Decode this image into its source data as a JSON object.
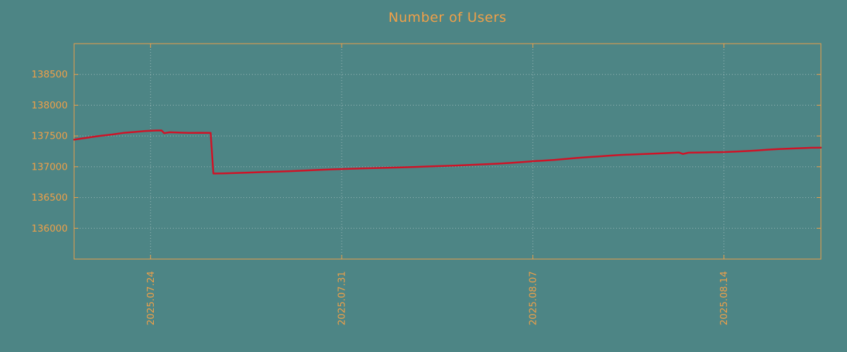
{
  "page": {
    "background_color": "#4d8585",
    "accent_color": "#f0a048"
  },
  "chart_data": {
    "type": "line",
    "title": "Number of Users",
    "title_color": "#f0a048",
    "axis_color": "#f0a048",
    "line_color": "#d01226",
    "grid_color": "#dfe6e6",
    "legend": "none",
    "grid": "dotted",
    "xlabel": "",
    "ylabel": "",
    "xlim": [
      0,
      27.35
    ],
    "ylim": [
      135500,
      139000
    ],
    "x_ticks": [
      {
        "pos": 2.8,
        "label": "2025.07.24"
      },
      {
        "pos": 9.8,
        "label": "2025.07.31"
      },
      {
        "pos": 16.8,
        "label": "2025.08.07"
      },
      {
        "pos": 23.8,
        "label": "2025.08.14"
      }
    ],
    "y_ticks": [
      {
        "value": 136000,
        "label": "136000"
      },
      {
        "value": 136500,
        "label": "136500"
      },
      {
        "value": 137000,
        "label": "137000"
      },
      {
        "value": 137500,
        "label": "137500"
      },
      {
        "value": 138000,
        "label": "138000"
      },
      {
        "value": 138500,
        "label": "138500"
      }
    ],
    "series": [
      {
        "name": "users",
        "color": "#d01226",
        "points": [
          [
            0.0,
            137440
          ],
          [
            0.3,
            137460
          ],
          [
            0.6,
            137480
          ],
          [
            1.0,
            137505
          ],
          [
            1.4,
            137525
          ],
          [
            1.8,
            137550
          ],
          [
            2.2,
            137565
          ],
          [
            2.6,
            137580
          ],
          [
            3.0,
            137588
          ],
          [
            3.2,
            137590
          ],
          [
            3.3,
            137545
          ],
          [
            3.5,
            137560
          ],
          [
            3.8,
            137555
          ],
          [
            4.2,
            137550
          ],
          [
            4.6,
            137552
          ],
          [
            5.0,
            137550
          ],
          [
            5.1,
            136890
          ],
          [
            5.5,
            136893
          ],
          [
            6.0,
            136900
          ],
          [
            6.5,
            136907
          ],
          [
            7.0,
            136915
          ],
          [
            7.5,
            136922
          ],
          [
            8.0,
            136930
          ],
          [
            8.5,
            136940
          ],
          [
            9.0,
            136950
          ],
          [
            9.5,
            136958
          ],
          [
            10.0,
            136965
          ],
          [
            10.5,
            136972
          ],
          [
            11.0,
            136978
          ],
          [
            11.5,
            136984
          ],
          [
            12.0,
            136990
          ],
          [
            12.5,
            136997
          ],
          [
            13.0,
            137005
          ],
          [
            13.5,
            137012
          ],
          [
            14.0,
            137020
          ],
          [
            14.5,
            137030
          ],
          [
            15.0,
            137040
          ],
          [
            15.5,
            137050
          ],
          [
            16.0,
            137062
          ],
          [
            16.4,
            137075
          ],
          [
            16.8,
            137090
          ],
          [
            17.2,
            137100
          ],
          [
            17.6,
            137112
          ],
          [
            18.0,
            137128
          ],
          [
            18.4,
            137142
          ],
          [
            18.8,
            137155
          ],
          [
            19.2,
            137168
          ],
          [
            19.6,
            137180
          ],
          [
            20.0,
            137192
          ],
          [
            20.4,
            137198
          ],
          [
            20.8,
            137205
          ],
          [
            21.2,
            137212
          ],
          [
            21.6,
            137220
          ],
          [
            22.0,
            137228
          ],
          [
            22.15,
            137232
          ],
          [
            22.3,
            137208
          ],
          [
            22.5,
            137228
          ],
          [
            23.0,
            137232
          ],
          [
            23.4,
            137235
          ],
          [
            23.8,
            137238
          ],
          [
            24.2,
            137245
          ],
          [
            24.6,
            137255
          ],
          [
            25.0,
            137265
          ],
          [
            25.4,
            137277
          ],
          [
            25.8,
            137287
          ],
          [
            26.2,
            137295
          ],
          [
            26.6,
            137302
          ],
          [
            27.0,
            137308
          ],
          [
            27.35,
            137310
          ]
        ]
      }
    ]
  }
}
